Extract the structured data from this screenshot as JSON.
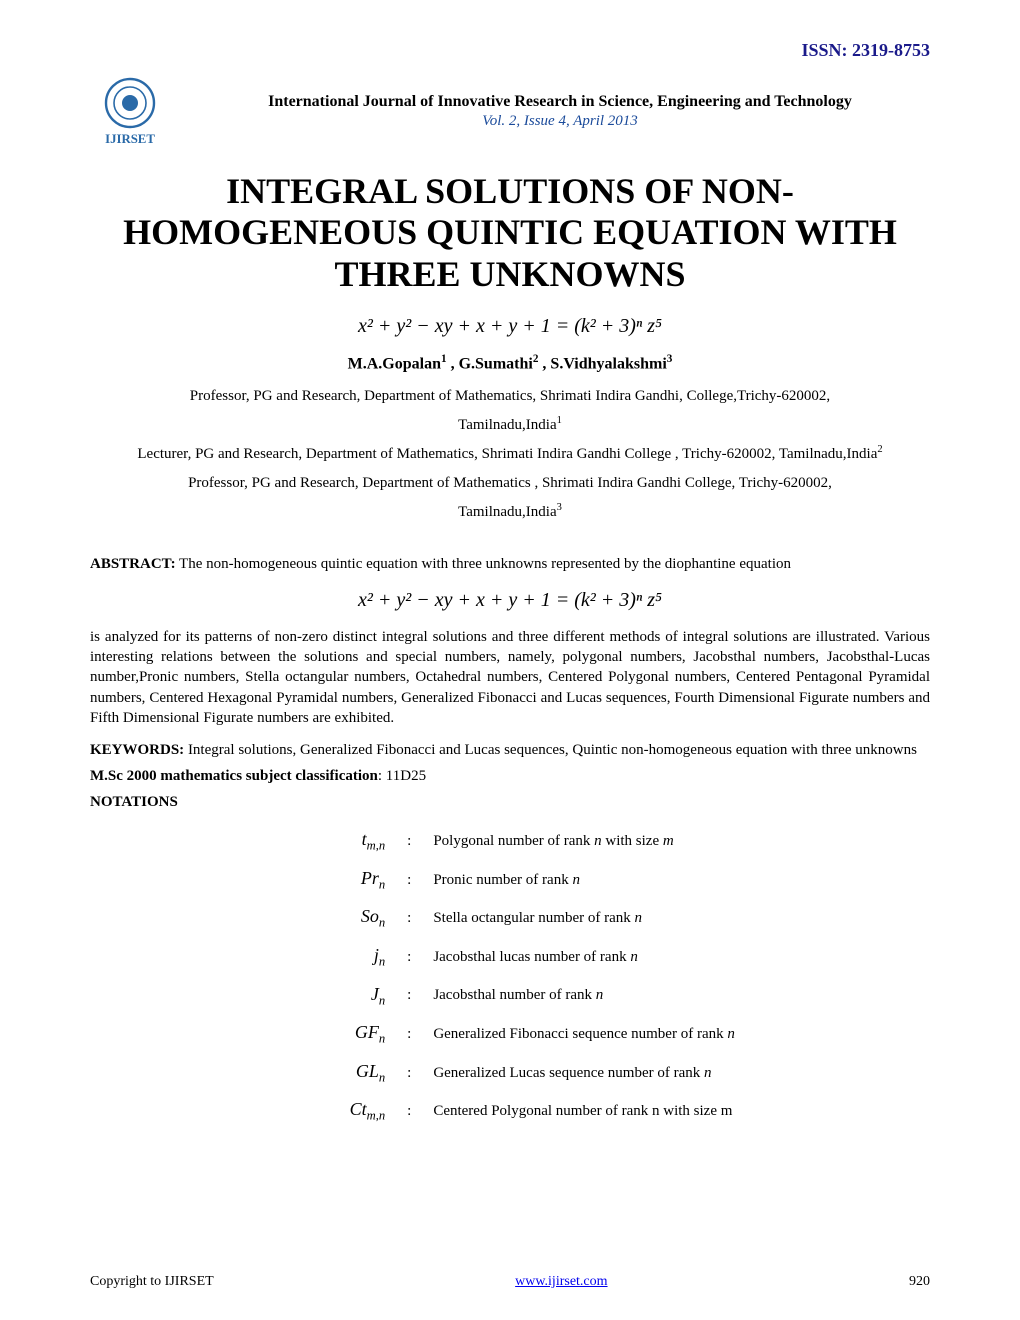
{
  "issn": "ISSN: 2319-8753",
  "journal": {
    "name": "International Journal of Innovative Research in Science, Engineering and Technology",
    "issue": "Vol. 2, Issue 4, April 2013"
  },
  "title_line1": "INTEGRAL SOLUTIONS OF NON-",
  "title_line2": "HOMOGENEOUS QUINTIC EQUATION WITH",
  "title_line3": "THREE UNKNOWNS",
  "equation": "x² + y² − xy + x + y + 1 = (k² + 3)ⁿ z⁵",
  "authors_html": "M.A.Gopalan<sup>1</sup> ,   G.Sumathi<sup>2</sup>  ,  S.Vidhyalakshmi<sup>3</sup>",
  "affiliations": [
    "Professor, PG and Research, Department of Mathematics, Shrimati Indira Gandhi, College,Trichy-620002,",
    "Tamilnadu,India<sup>1</sup>",
    "Lecturer, PG and Research, Department of Mathematics, Shrimati Indira Gandhi College , Trichy-620002, Tamilnadu,India<sup>2</sup>",
    "Professor, PG and Research, Department of Mathematics , Shrimati Indira Gandhi College, Trichy-620002,",
    "Tamilnadu,India<sup>3</sup>"
  ],
  "abstract_label": "ABSTRACT:",
  "abstract_text1": " The non-homogeneous quintic equation with three unknowns represented by the   diophantine equation",
  "abstract_text2": "is analyzed for its patterns of non-zero distinct integral solutions and three different methods of integral solutions are illustrated. Various interesting relations between the solutions and special numbers, namely, polygonal numbers, Jacobsthal numbers,  Jacobsthal-Lucas number,Pronic numbers, Stella octangular numbers, Octahedral numbers,  Centered Polygonal numbers, Centered Pentagonal Pyramidal numbers, Centered Hexagonal Pyramidal numbers,  Generalized Fibonacci  and  Lucas sequences, Fourth Dimensional Figurate numbers and Fifth Dimensional Figurate numbers are exhibited.",
  "keywords_label": "KEYWORDS:",
  "keywords_text": " Integral solutions, Generalized Fibonacci  and Lucas sequences, Quintic non-homogeneous equation with three unknowns",
  "msc_label": "M.Sc 2000 mathematics subject classification",
  "msc_value": ": 11D25",
  "notations_label": "NOTATIONS",
  "notations": [
    {
      "symbol": "t<sub>m,n</sub>",
      "desc": "Polygonal number of rank  <span class='ivar'>n</span>  with size  <span class='ivar'>m</span>"
    },
    {
      "symbol": "Pr<sub>n</sub>",
      "desc": "Pronic number of rank <span class='ivar'>n</span>"
    },
    {
      "symbol": "So<sub>n</sub>",
      "desc": "Stella octangular number of rank  <span class='ivar'>n</span>"
    },
    {
      "symbol": "j<sub>n</sub>",
      "desc": "Jacobsthal lucas number of rank  <span class='ivar'>n</span>"
    },
    {
      "symbol": "J<sub>n</sub>",
      "desc": "Jacobsthal number of rank  <span class='ivar'>n</span>"
    },
    {
      "symbol": "GF<sub>n</sub>",
      "desc": "Generalized Fibonacci sequence number of rank  <span class='ivar'>n</span>"
    },
    {
      "symbol": "GL<sub>n</sub>",
      "desc": "Generalized Lucas sequence number of rank  <span class='ivar'>n</span>"
    },
    {
      "symbol": "Ct<sub>m,n</sub>",
      "desc": "Centered Polygonal number of rank n with size m"
    }
  ],
  "footer": {
    "copyright": "Copyright to IJIRSET",
    "url": "www.ijirset.com",
    "page": "920"
  },
  "colors": {
    "issn": "#1a1a8a",
    "issue": "#1a4a9a",
    "link": "#0000ee",
    "text": "#000000",
    "background": "#ffffff",
    "logo_stroke": "#2a6aa8"
  }
}
